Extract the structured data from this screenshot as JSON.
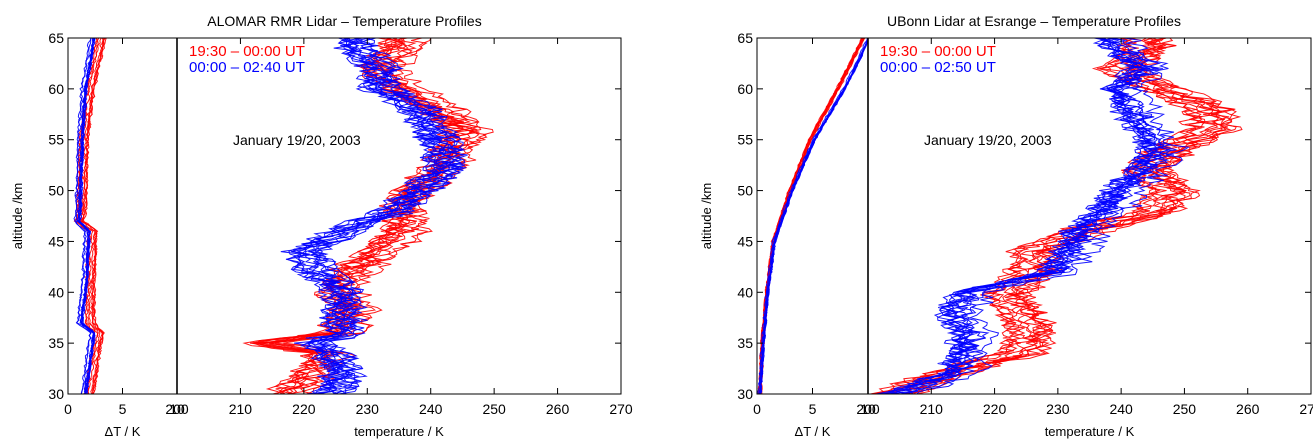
{
  "chart_data": [
    {
      "type": "line",
      "title": "ALOMAR RMR Lidar – Temperature Profiles",
      "annotation": "January 19/20, 2003",
      "ylabel": "altitude /km",
      "ylim": [
        30,
        65
      ],
      "yticks": [
        "30",
        "35",
        "40",
        "45",
        "50",
        "55",
        "60",
        "65"
      ],
      "grid": false,
      "legend_placement": "top-left",
      "legend": [
        {
          "label": "19:30 – 00:00 UT",
          "color": "#ff0000"
        },
        {
          "label": "00:00 – 02:40 UT",
          "color": "#0000ff"
        }
      ],
      "error_panel": {
        "xlabel": "ΔT / K",
        "xlim": [
          0,
          10
        ],
        "xticks": [
          "0",
          "5",
          "10"
        ],
        "series": [
          {
            "group": "19:30 – 00:00 UT",
            "color": "#ff0000",
            "y": [
              30,
              36,
              37,
              41,
              46,
              47,
              48,
              55,
              60,
              65
            ],
            "x": [
              1.9,
              2.8,
              2.0,
              2.0,
              2.2,
              1.0,
              1.2,
              1.4,
              2.0,
              3.0
            ]
          },
          {
            "group": "00:00 – 02:40 UT",
            "color": "#0000ff",
            "y": [
              30,
              36,
              37,
              41,
              46,
              47,
              48,
              55,
              60,
              65
            ],
            "x": [
              1.4,
              2.2,
              1.0,
              1.5,
              1.7,
              0.8,
              0.9,
              1.1,
              1.4,
              2.2
            ]
          }
        ]
      },
      "temperature_panel": {
        "xlabel": "temperature / K",
        "xlim": [
          200,
          270
        ],
        "xticks": [
          "200",
          "210",
          "220",
          "230",
          "240",
          "250",
          "260",
          "270"
        ],
        "series": [
          {
            "group": "19:30 – 00:00 UT",
            "color": "#ff0000",
            "y": [
              30,
              32,
              34,
              35,
              36,
              38,
              40,
              42,
              44,
              46,
              48,
              50,
              52,
              54,
              56,
              58,
              60,
              62,
              64,
              65
            ],
            "x": [
              218,
              222,
              224,
              214,
              226,
              228,
              226,
              228,
              232,
              236,
              236,
              238,
              242,
              244,
              246,
              242,
              236,
              232,
              236,
              236
            ]
          },
          {
            "group": "00:00 – 02:40 UT",
            "color": "#0000ff",
            "y": [
              30,
              32,
              34,
              35,
              36,
              38,
              40,
              42,
              44,
              46,
              48,
              50,
              52,
              54,
              56,
              58,
              60,
              62,
              64,
              65
            ],
            "x": [
              224,
              226,
              224,
              222,
              226,
              226,
              226,
              222,
              220,
              226,
              234,
              238,
              242,
              242,
              240,
              238,
              232,
              232,
              228,
              228
            ]
          }
        ]
      }
    },
    {
      "type": "line",
      "title": "UBonn Lidar at Esrange – Temperature Profiles",
      "annotation": "January 19/20, 2003",
      "ylabel": "altitude /km",
      "ylim": [
        30,
        65
      ],
      "yticks": [
        "30",
        "35",
        "40",
        "45",
        "50",
        "55",
        "60",
        "65"
      ],
      "grid": false,
      "legend_placement": "top-left",
      "legend": [
        {
          "label": "19:30 – 00:00 UT",
          "color": "#ff0000"
        },
        {
          "label": "00:00 – 02:50 UT",
          "color": "#0000ff"
        }
      ],
      "error_panel": {
        "xlabel": "ΔT / K",
        "xlim": [
          0,
          10
        ],
        "xticks": [
          "0",
          "5",
          "10"
        ],
        "series": [
          {
            "group": "19:30 – 00:00 UT",
            "color": "#ff0000",
            "y": [
              30,
              35,
              40,
              45,
              50,
              55,
              60,
              63,
              65
            ],
            "x": [
              0.3,
              0.5,
              0.9,
              1.5,
              3.0,
              4.8,
              7.3,
              8.7,
              9.6
            ]
          },
          {
            "group": "00:00 – 02:50 UT",
            "color": "#0000ff",
            "y": [
              30,
              35,
              40,
              45,
              50,
              55,
              60,
              63,
              65
            ],
            "x": [
              0.2,
              0.5,
              0.9,
              1.5,
              3.1,
              5.1,
              7.8,
              9.2,
              10.0
            ]
          }
        ]
      },
      "temperature_panel": {
        "xlabel": "temperature / K",
        "xlim": [
          200,
          270
        ],
        "xticks": [
          "200",
          "210",
          "220",
          "230",
          "240",
          "250",
          "260",
          "270"
        ],
        "series": [
          {
            "group": "19:30 – 00:00 UT",
            "color": "#ff0000",
            "y": [
              30,
              32,
              34,
              36,
              38,
              40,
              42,
              44,
              46,
              48,
              50,
              52,
              54,
              56,
              58,
              60,
              62,
              64,
              65
            ],
            "x": [
              204,
              212,
              224,
              226,
              224,
              222,
              226,
              226,
              234,
              246,
              248,
              244,
              248,
              254,
              254,
              246,
              240,
              244,
              244
            ]
          },
          {
            "group": "00:00 – 02:50 UT",
            "color": "#0000ff",
            "y": [
              30,
              32,
              34,
              36,
              38,
              40,
              42,
              44,
              46,
              48,
              50,
              52,
              54,
              56,
              58,
              60,
              62,
              64,
              65
            ],
            "x": [
              205,
              214,
              216,
              216,
              214,
              216,
              230,
              232,
              234,
              238,
              240,
              244,
              246,
              244,
              242,
              240,
              244,
              240,
              238
            ]
          }
        ]
      }
    }
  ]
}
